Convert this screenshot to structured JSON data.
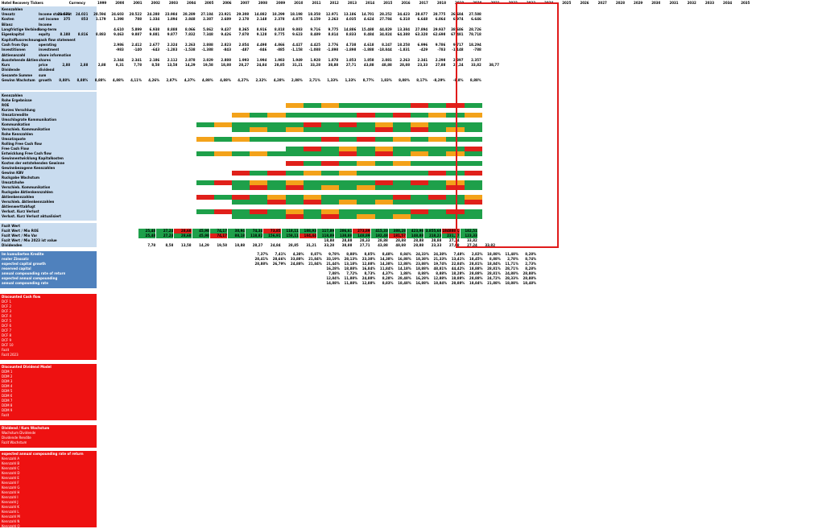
{
  "header": {
    "ticker": "Hotel Recovery Tickers",
    "units": "Currency",
    "years": [
      "1999",
      "2000",
      "2001",
      "2002",
      "2003",
      "2004",
      "2005",
      "2006",
      "2007",
      "2008",
      "2009",
      "2010",
      "2011",
      "2012",
      "2013",
      "2014",
      "2015",
      "2016",
      "2017",
      "2018",
      "2019",
      "2020",
      "2021",
      "2022",
      "2023",
      "2024",
      "2025",
      "2026",
      "2027",
      "2028",
      "2029",
      "2030",
      "2031",
      "2032",
      "2033",
      "2034",
      "2035"
    ]
  },
  "colors": {
    "blue_band": "#c9dcef",
    "blue_dark": "#4f81bd",
    "red_band": "#ee1111",
    "green": "#1ea04a",
    "red_cell": "#e0201a",
    "orange": "#f3a21a",
    "highlight": "#e01b1b"
  },
  "blocks": {
    "income_rows": [
      {
        "label": "Kennzahlen",
        "note": "",
        "vals": [
          "",
          "",
          "",
          "",
          "",
          "",
          "",
          "",
          "",
          "",
          "",
          "",
          "",
          "",
          "",
          "",
          "",
          "",
          "",
          "",
          "",
          "",
          ""
        ]
      },
      {
        "label": "Umsatz",
        "note": "Income statement",
        "vals": [
          "21.571",
          "24.021",
          "28.594",
          "24.603",
          "28.522",
          "24.288",
          "23.984",
          "28.289",
          "27.184",
          "23.921",
          "29.308",
          "14.882",
          "18.299",
          "18.198",
          "18.358",
          "12.971",
          "13.186",
          "14.701",
          "28.252",
          "34.423",
          "28.877",
          "28.775",
          "26.684",
          "27.588"
        ]
      },
      {
        "label": "Kosten",
        "note": "net income",
        "vals": [
          "375",
          "853",
          "1.179",
          "1.398",
          "788",
          "1.334",
          "1.894",
          "2.848",
          "2.387",
          "2.689",
          "2.178",
          "2.148",
          "2.378",
          "4.875",
          "4.159",
          "2.263",
          "4.035",
          "4.624",
          "27.784",
          "6.318",
          "6.648",
          "6.864",
          "6.974",
          "6.646"
        ]
      },
      {
        "label": "Bilanz",
        "note": "Income",
        "vals": [
          "",
          "",
          "",
          "",
          "",
          "",
          "",
          "",
          "",
          "",
          "",
          "",
          "",
          "",
          "",
          "",
          "",
          "",
          "",
          "",
          "",
          "",
          ""
        ]
      },
      {
        "label": "Langfristige Verbindl.",
        "note": "long-term",
        "vals": [
          "",
          "",
          "",
          "4.610",
          "5.899",
          "6.938",
          "8.888",
          "8.066",
          "5.862",
          "9.437",
          "8.365",
          "8.916",
          "8.818",
          "9.883",
          "9.716",
          "9.775",
          "14.886",
          "15.488",
          "44.829",
          "13.384",
          "27.894",
          "29.937",
          "38.686",
          "28.726"
        ]
      },
      {
        "label": "Eigenkapital",
        "note": "equity",
        "vals": [
          "8.188",
          "8.816",
          "8.883",
          "9.463",
          "9.887",
          "9.881",
          "9.877",
          "7.832",
          "7.348",
          "9.426",
          "7.878",
          "9.128",
          "8.775",
          "9.623",
          "8.489",
          "8.814",
          "8.833",
          "8.484",
          "34.824",
          "64.388",
          "63.328",
          "62.698",
          "67.481",
          "78.718"
        ]
      },
      {
        "label": "Kapitalflussrechnung",
        "note": "cash flow statement",
        "vals": [
          "",
          "",
          "",
          "",
          "",
          "",
          "",
          "",
          "",
          "",
          "",
          "",
          "",
          "",
          "",
          "",
          "",
          "",
          "",
          "",
          "",
          "",
          ""
        ]
      },
      {
        "label": "Cash from Ops",
        "note": "operating",
        "vals": [
          "",
          "",
          "",
          "2.986",
          "2.412",
          "2.677",
          "2.324",
          "2.263",
          "2.888",
          "2.823",
          "2.854",
          "4.498",
          "4.866",
          "4.427",
          "4.425",
          "2.776",
          "4.738",
          "4.618",
          "8.247",
          "18.258",
          "6.996",
          "9.786",
          "9.717",
          "18.294"
        ]
      },
      {
        "label": "Investitionen",
        "note": "investment",
        "vals": [
          "",
          "",
          "",
          "-983",
          "-140",
          "-643",
          "-1.283",
          "-1.538",
          "-1.388",
          "-843",
          "-487",
          "-846",
          "-885",
          "-1.158",
          "-1.088",
          "-1.898",
          "-1.898",
          "-1.888",
          "-18.844",
          "-1.831",
          "-429",
          "-783",
          "-1.148",
          "-788"
        ]
      },
      {
        "label": "Aktienanzahl",
        "note": "share information",
        "vals": [
          "",
          "",
          "",
          "",
          "",
          "",
          "",
          "",
          "",
          "",
          "",
          "",
          "",
          "",
          "",
          "",
          "",
          "",
          "",
          "",
          "",
          "",
          ""
        ]
      },
      {
        "label": "Ausstehende Aktien",
        "note": "shares",
        "vals": [
          "",
          "",
          "",
          "2.344",
          "2.341",
          "2.186",
          "2.112",
          "2.878",
          "2.829",
          "2.888",
          "1.993",
          "1.994",
          "1.983",
          "1.949",
          "1.928",
          "1.878",
          "1.853",
          "1.858",
          "2.881",
          "2.263",
          "2.341",
          "2.298",
          "2.397",
          "2.357"
        ]
      },
      {
        "label": "Kurs",
        "note": "price",
        "vals": [
          "2,88",
          "2,88",
          "2,88",
          "8,31",
          "7,78",
          "8,58",
          "13,58",
          "14,29",
          "19,58",
          "18,88",
          "28,27",
          "24,84",
          "28,85",
          "31,21",
          "33,28",
          "38,88",
          "27,71",
          "43,88",
          "48,88",
          "28,88",
          "23,33",
          "27,88",
          "27,24",
          "33,82",
          "38,77"
        ]
      },
      {
        "label": "Dividende",
        "note": "dividend",
        "vals": [
          "",
          "",
          "",
          "",
          "",
          "",
          "",
          "",
          "",
          "",
          "",
          "",
          "",
          "",
          "",
          "",
          "",
          "",
          "",
          "",
          "",
          "",
          ""
        ]
      },
      {
        "label": "Gesamte Summe",
        "note": "sum",
        "vals": [
          "",
          "",
          "",
          "",
          "",
          "",
          "",
          "",
          "",
          "",
          "",
          "",
          "",
          "",
          "",
          "",
          "",
          "",
          "",
          "",
          "",
          "",
          ""
        ]
      },
      {
        "label": "Gewinn Wachstum",
        "note": "growth",
        "vals": [
          "8,88%",
          "8,88%",
          "8,88%",
          "4,88%",
          "4,11%",
          "4,26%",
          "2,87%",
          "4,37%",
          "4,88%",
          "4,88%",
          "4,27%",
          "2,32%",
          "4,28%",
          "2,88%",
          "2,71%",
          "1,33%",
          "1,33%",
          "8,77%",
          "1,83%",
          "8,88%",
          "8,17%",
          "-8,29%",
          "-8,8%",
          "8,88%"
        ]
      }
    ],
    "metric_rows": [
      {
        "label": "Kennzahlen",
        "kind": "head"
      },
      {
        "label": "Rohe Ergebnisse",
        "kind": "head"
      },
      {
        "label": "ROE",
        "kind": "colored"
      },
      {
        "label": "Kurzes Verschlung",
        "kind": "head"
      },
      {
        "label": "Umsatzrendite",
        "kind": "colored"
      },
      {
        "label": "Umschlagrate Kommunikation",
        "kind": "head"
      },
      {
        "label": "Kommunikation",
        "kind": "colored"
      },
      {
        "label": "Verschieb. Kommunikation",
        "kind": "colored"
      },
      {
        "label": "Rohe Kennzahlen",
        "kind": "head"
      },
      {
        "label": "Umsatzquote",
        "kind": "colored"
      },
      {
        "label": "Rolling Free Cash flow",
        "kind": "head"
      },
      {
        "label": "Free Cash Flow",
        "kind": "colored"
      },
      {
        "label": "Entwicklung Free Cash flow",
        "kind": "colored"
      },
      {
        "label": "Gewinnentwicklung Kapitalkosten",
        "kind": "head"
      },
      {
        "label": "Kosten der entstehenden Gewinne",
        "kind": "colored"
      },
      {
        "label": "Gewinnbezogene Kennzahlen",
        "kind": "head"
      },
      {
        "label": "Gewinn KBV",
        "kind": "colored"
      },
      {
        "label": "Ruckgabe Wachstum",
        "kind": "head"
      },
      {
        "label": "Umsatzhohe",
        "kind": "colored"
      },
      {
        "label": "Verschieb. Kommunikation",
        "kind": "colored"
      },
      {
        "label": "Ruckgabe Aktienkennzahlen",
        "kind": "head"
      },
      {
        "label": "Aktienkennzahlen",
        "kind": "colored"
      },
      {
        "label": "Verschieb. Aktienkennzahlen",
        "kind": "colored"
      },
      {
        "label": "Aktienwerttabfugt",
        "kind": "head"
      },
      {
        "label": "Verlust. Kurz Verlust",
        "kind": "colored"
      },
      {
        "label": "Verlust. Kurz Verlust aktualisiert",
        "kind": "colored"
      }
    ],
    "kpi_rows": [
      {
        "label": "Fazit Wert",
        "vals": [
          "",
          "",
          "",
          "",
          "",
          "",
          "",
          "",
          "",
          "",
          "",
          "",
          "",
          "",
          "",
          "",
          "",
          "",
          ""
        ]
      },
      {
        "label": "Fazit Wert / Mio ROE",
        "vals": [
          "25,48",
          "27,24",
          "28,68",
          "45,98",
          "74,17",
          "38,94",
          "74,34",
          "73,85",
          "118,11",
          "188,93",
          "117,89",
          "286,61",
          "273,89",
          "415,33",
          "388,28",
          "423,98",
          "3.855,68",
          "1848888,88",
          "182,51"
        ]
      },
      {
        "label": "Fazit Wert / Mio Var",
        "vals": [
          "25,48",
          "27,24",
          "28,68",
          "45,98",
          "74,17",
          "88,18",
          "118,82",
          "156,91",
          "158,11",
          "184,44",
          "118,89",
          "138,88",
          "148,89",
          "182,48",
          "181,57",
          "148,88",
          "218,23",
          "231,17",
          "123,33"
        ]
      },
      {
        "label": "Fazit Wert / Mio 2023 ist value",
        "vals": [
          "",
          "",
          "",
          "",
          "",
          "",
          "",
          "",
          "",
          "",
          "18,88",
          "28,88",
          "28,33",
          "28,88",
          "28,88",
          "28,88",
          "28,88",
          "27,24",
          "33,82"
        ]
      },
      {
        "label": "Dividenden",
        "vals": [
          "7,78",
          "8,58",
          "13,58",
          "14,29",
          "19,58",
          "18,88",
          "28,27",
          "24,84",
          "28,85",
          "31,21",
          "33,28",
          "38,88",
          "27,71",
          "43,88",
          "48,88",
          "28,88",
          "23,33",
          "27,88",
          "27,24",
          "33,82"
        ]
      }
    ],
    "blue_rows": [
      {
        "label": "Im kumulierten Kredite",
        "vals": [
          "7,37%",
          "7,41%",
          "4,38%",
          "8,87%",
          "9,78%",
          "8,88%",
          "8,85%",
          "8,48%",
          "8,84%",
          "24,33%",
          "24,38%",
          "7,48%",
          "2,82%",
          "18,88%",
          "11,48%",
          "8,28%"
        ]
      },
      {
        "label": "realer Zinssatz",
        "vals": [
          "28,41%",
          "28,66%",
          "33,88%",
          "21,84%",
          "33,19%",
          "28,13%",
          "23,38%",
          "14,38%",
          "16,88%",
          "18,38%",
          "21,33%",
          "13,41%",
          "18,45%",
          "8,88%",
          "2,78%",
          "8,74%"
        ]
      },
      {
        "label": "expected capital growth",
        "vals": [
          "28,88%",
          "26,79%",
          "24,88%",
          "21,84%",
          "21,44%",
          "13,18%",
          "12,88%",
          "14,38%",
          "12,88%",
          "23,88%",
          "19,74%",
          "22,84%",
          "28,81%",
          "18,84%",
          "11,71%",
          "2,73%"
        ]
      },
      {
        "label": "reserved capital",
        "vals": [
          "",
          "",
          "",
          "",
          "16,28%",
          "18,88%",
          "16,84%",
          "11,84%",
          "14,18%",
          "18,88%",
          "48,81%",
          "44,42%",
          "18,88%",
          "28,81%",
          "28,71%",
          "8,28%"
        ]
      },
      {
        "label": "annual compounding rate of return",
        "vals": [
          "",
          "",
          "",
          "",
          "7,88%",
          "7,72%",
          "8,73%",
          "4,37%",
          "1,88%",
          "8,88%",
          "8,88%",
          "18,28%",
          "28,88%",
          "28,81%",
          "24,88%",
          "28,88%"
        ]
      },
      {
        "label": "expected annual compounding",
        "vals": [
          "",
          "",
          "",
          "",
          "12,84%",
          "11,88%",
          "24,88%",
          "8,28%",
          "28,48%",
          "16,28%",
          "12,88%",
          "18,88%",
          "28,88%",
          "24,72%",
          "28,33%",
          "28,88%"
        ]
      },
      {
        "label": "annual compounding rate",
        "vals": [
          "",
          "",
          "",
          "",
          "14,88%",
          "11,88%",
          "12,88%",
          "8,83%",
          "18,48%",
          "16,88%",
          "18,84%",
          "28,88%",
          "18,84%",
          "21,88%",
          "18,88%",
          "18,48%"
        ]
      }
    ],
    "red_sections": [
      {
        "title": "Discounted Cash flow",
        "rows": [
          "DCF 1",
          "DCF 2",
          "DCF 3",
          "DCF 4",
          "DCF 5",
          "DCF 6",
          "DCF 7",
          "DCF 8",
          "DCF 9",
          "DCF 10",
          "Fazit",
          "Fazit 2023"
        ]
      },
      {
        "title": "Discounted Dividend Model",
        "rows": [
          "DDM 1",
          "DDM 2",
          "DDM 3",
          "DDM 4",
          "DDM 5",
          "DDM 6",
          "DDM 7",
          "DDM 8",
          "DDM 9",
          "Fazit"
        ]
      },
      {
        "title": "Dividend / Kurs Wachstum",
        "rows": [
          "Wachstum Dividende",
          "Dividende Rendite",
          "Fazit Wachstum"
        ]
      },
      {
        "title": "expected annual compounding rate of return",
        "rows": [
          "Kennzahl A",
          "Kennzahl B",
          "Kennzahl C",
          "Kennzahl D",
          "Kennzahl E",
          "Kennzahl F",
          "Kennzahl G",
          "Kennzahl H",
          "Kennzahl I",
          "Kennzahl J",
          "Kennzahl K",
          "Kennzahl L",
          "Kennzahl M",
          "Kennzahl N",
          "Kennzahl O"
        ]
      }
    ]
  }
}
